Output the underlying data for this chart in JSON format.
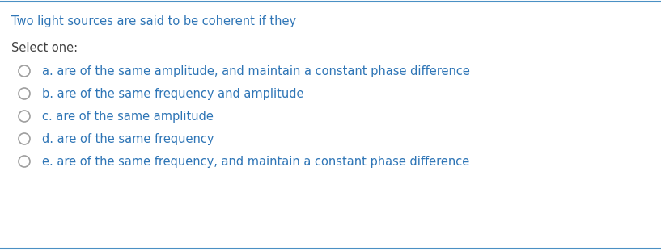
{
  "background_color": "#ffffff",
  "top_line_color": "#4a90c4",
  "bottom_line_color": "#4a90c4",
  "question_text": "Two light sources are said to be coherent if they",
  "question_color": "#2e75b6",
  "select_one_text": "Select one:",
  "select_one_color": "#404040",
  "options": [
    "a. are of the same amplitude, and maintain a constant phase difference",
    "b. are of the same frequency and amplitude",
    "c. are of the same amplitude",
    "d. are of the same frequency",
    "e. are of the same frequency, and maintain a constant phase difference"
  ],
  "option_color": "#2e75b6",
  "circle_edge_color": "#9e9e9e",
  "circle_face_color": "#ffffff",
  "font_size_question": 10.5,
  "font_size_select": 10.5,
  "font_size_option": 10.5,
  "fig_width": 8.17,
  "fig_height": 3.11,
  "dpi": 100
}
